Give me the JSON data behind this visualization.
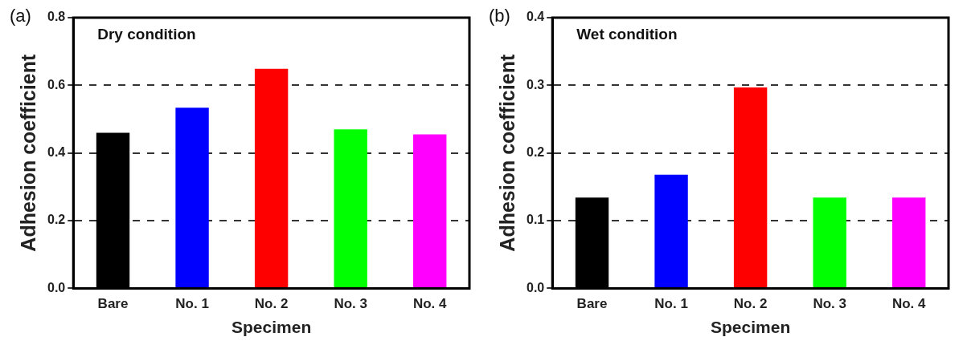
{
  "chart_data": [
    {
      "type": "bar",
      "title": "Dry condition",
      "annotations": [
        "(a)"
      ],
      "xlabel": "Specimen",
      "ylabel": "Adhesion coefficient",
      "categories": [
        "Bare",
        "No. 1",
        "No. 2",
        "No. 3",
        "No. 4"
      ],
      "values": [
        0.46,
        0.534,
        0.649,
        0.47,
        0.455
      ],
      "colors": [
        "#000000",
        "#0000ff",
        "#ff0000",
        "#00ff00",
        "#ff00ff"
      ],
      "ylim": [
        0,
        0.8
      ],
      "yticks": [
        {
          "value": 0,
          "label": "0.0"
        },
        0.2,
        0.4,
        0.6,
        0.8
      ],
      "grid": "y"
    },
    {
      "type": "bar",
      "title": "Wet condition",
      "annotations": [
        "(b)"
      ],
      "xlabel": "Specimen",
      "ylabel": "Adhesion coefficient",
      "categories": [
        "Bare",
        "No. 1",
        "No. 2",
        "No. 3",
        "No. 4"
      ],
      "values": [
        0.134,
        0.168,
        0.297,
        0.134,
        0.134
      ],
      "colors": [
        "#000000",
        "#0000ff",
        "#ff0000",
        "#00ff00",
        "#ff00ff"
      ],
      "ylim": [
        0,
        0.4
      ],
      "yticks": [
        {
          "value": 0,
          "label": "0.0"
        },
        0.1,
        0.2,
        0.3,
        0.4
      ],
      "grid": "y"
    }
  ]
}
